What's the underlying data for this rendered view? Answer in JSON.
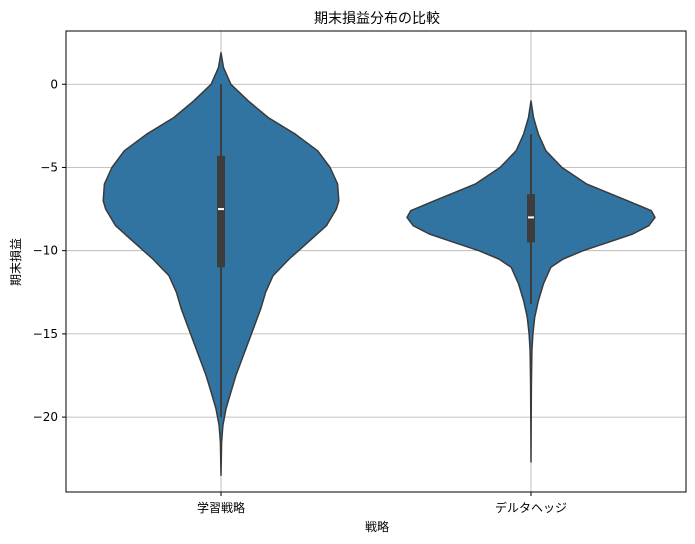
{
  "chart_data": {
    "type": "violin",
    "title": "期末損益分布の比較",
    "xlabel": "戦略",
    "ylabel": "期末損益",
    "categories": [
      "学習戦略",
      "デルタヘッジ"
    ],
    "ylim": [
      -24.5,
      3.2
    ],
    "yticks": [
      0,
      -5,
      -10,
      -15,
      -20
    ],
    "ytick_labels": [
      "0",
      "−5",
      "−10",
      "−15",
      "−20"
    ],
    "grid": true,
    "color": "#3274a1",
    "series": [
      {
        "category": "学習戦略",
        "min": -23.5,
        "max": 1.9,
        "q1": -11.0,
        "median": -7.5,
        "q3": -4.3,
        "whisker_low": -20.0,
        "whisker_high": 0.0,
        "density": [
          [
            1.9,
            0
          ],
          [
            1.0,
            0.02
          ],
          [
            0.0,
            0.08
          ],
          [
            -1.0,
            0.22
          ],
          [
            -2.0,
            0.38
          ],
          [
            -3.0,
            0.6
          ],
          [
            -4.0,
            0.78
          ],
          [
            -5.0,
            0.88
          ],
          [
            -6.0,
            0.94
          ],
          [
            -7.0,
            0.95
          ],
          [
            -7.5,
            0.93
          ],
          [
            -8.5,
            0.85
          ],
          [
            -9.5,
            0.7
          ],
          [
            -10.5,
            0.55
          ],
          [
            -11.5,
            0.42
          ],
          [
            -12.5,
            0.36
          ],
          [
            -13.5,
            0.32
          ],
          [
            -14.5,
            0.27
          ],
          [
            -15.5,
            0.22
          ],
          [
            -16.5,
            0.17
          ],
          [
            -17.5,
            0.12
          ],
          [
            -18.5,
            0.08
          ],
          [
            -19.5,
            0.04
          ],
          [
            -20.5,
            0.015
          ],
          [
            -21.5,
            0.005
          ],
          [
            -23.5,
            0
          ]
        ]
      },
      {
        "category": "デルタヘッジ",
        "min": -22.7,
        "max": -1.0,
        "q1": -9.5,
        "median": -8.0,
        "q3": -6.6,
        "whisker_low": -13.2,
        "whisker_high": -3.0,
        "density": [
          [
            -1.0,
            0
          ],
          [
            -2.0,
            0.02
          ],
          [
            -3.0,
            0.06
          ],
          [
            -4.0,
            0.12
          ],
          [
            -5.0,
            0.25
          ],
          [
            -6.0,
            0.45
          ],
          [
            -7.0,
            0.78
          ],
          [
            -7.6,
            0.97
          ],
          [
            -8.0,
            1.0
          ],
          [
            -8.5,
            0.95
          ],
          [
            -9.0,
            0.82
          ],
          [
            -9.5,
            0.62
          ],
          [
            -10.0,
            0.42
          ],
          [
            -10.5,
            0.26
          ],
          [
            -11.0,
            0.16
          ],
          [
            -12.0,
            0.1
          ],
          [
            -13.0,
            0.06
          ],
          [
            -14.0,
            0.03
          ],
          [
            -15.0,
            0.015
          ],
          [
            -16.0,
            0.007
          ],
          [
            -18.0,
            0.003
          ],
          [
            -20.0,
            0.002
          ],
          [
            -22.7,
            0
          ]
        ]
      }
    ]
  }
}
